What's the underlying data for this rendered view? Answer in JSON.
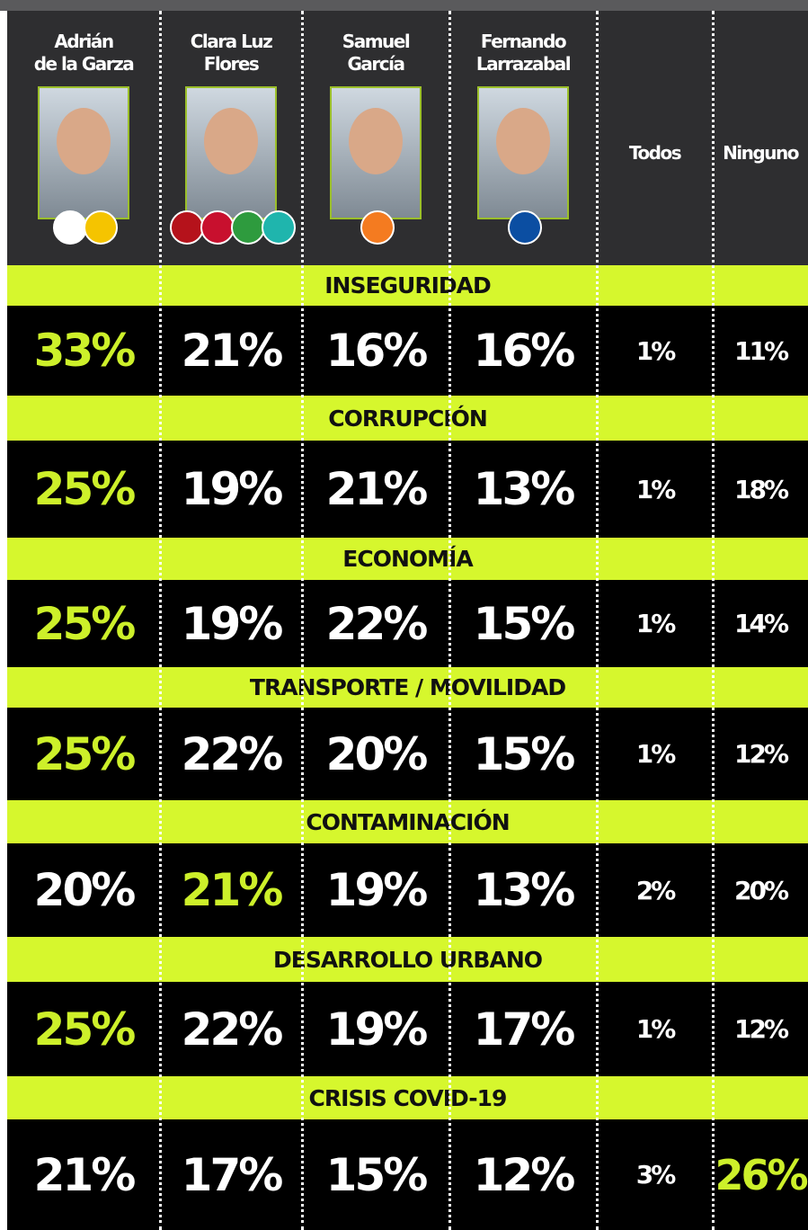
{
  "columns": [
    {
      "lines": [
        "Adrián",
        "de la Garza"
      ]
    },
    {
      "lines": [
        "Clara Luz",
        "Flores"
      ]
    },
    {
      "lines": [
        "Samuel",
        "García"
      ]
    },
    {
      "lines": [
        "Fernando",
        "Larrazabal"
      ]
    },
    {
      "lines": [
        "Todos"
      ]
    },
    {
      "lines": [
        "Ninguno"
      ]
    }
  ],
  "sections": [
    {
      "title": "INSEGURIDAD",
      "values": [
        "33%",
        "21%",
        "16%",
        "16%",
        "1%",
        "11%"
      ]
    },
    {
      "title": "CORRUPCIÓN",
      "values": [
        "25%",
        "19%",
        "21%",
        "13%",
        "1%",
        "18%"
      ]
    },
    {
      "title": "ECONOMÍA",
      "values": [
        "25%",
        "19%",
        "22%",
        "15%",
        "1%",
        "14%"
      ]
    },
    {
      "title": "TRANSPORTE / MOVILIDAD",
      "values": [
        "25%",
        "22%",
        "20%",
        "15%",
        "1%",
        "12%"
      ]
    },
    {
      "title": "CONTAMINACIÓN",
      "values": [
        "20%",
        "21%",
        "19%",
        "13%",
        "2%",
        "20%"
      ]
    },
    {
      "title": "DESARROLLO URBANO",
      "values": [
        "25%",
        "22%",
        "19%",
        "17%",
        "1%",
        "12%"
      ]
    },
    {
      "title": "CRISIS COVID-19",
      "values": [
        "21%",
        "17%",
        "15%",
        "12%",
        "3%",
        "26%"
      ]
    }
  ]
}
